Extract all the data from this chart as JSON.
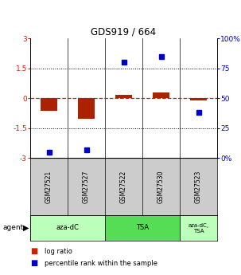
{
  "title": "GDS919 / 664",
  "samples": [
    "GSM27521",
    "GSM27527",
    "GSM27522",
    "GSM27530",
    "GSM27523"
  ],
  "log_ratio": [
    -0.65,
    -1.02,
    0.15,
    0.27,
    -0.1
  ],
  "percentile_rank": [
    5,
    7,
    80,
    85,
    38
  ],
  "ylim": [
    -3,
    3
  ],
  "yticks_left": [
    -3,
    -1.5,
    0,
    1.5,
    3
  ],
  "ytick_labels_left": [
    "-3",
    "-1.5",
    "0",
    "1.5",
    "3"
  ],
  "yticks_right": [
    0,
    25,
    50,
    75,
    100
  ],
  "ytick_labels_right": [
    "0%",
    "25",
    "50",
    "75",
    "100%"
  ],
  "hlines": [
    0,
    1.5,
    -1.5
  ],
  "bar_color": "#aa2200",
  "dot_color": "#0000cc",
  "agent_groups": [
    {
      "label": "aza-dC",
      "start": 0,
      "end": 2,
      "color": "#bbffbb"
    },
    {
      "label": "TSA",
      "start": 2,
      "end": 4,
      "color": "#55dd55"
    },
    {
      "label": "aza-dC,\nTSA",
      "start": 4,
      "end": 5,
      "color": "#bbffbb"
    }
  ],
  "legend_bar_color": "#cc2200",
  "legend_dot_color": "#0000cc",
  "background_color": "#ffffff",
  "plot_bg": "#ffffff",
  "label_color_left": "#cc2200",
  "label_color_right": "#0000aa"
}
